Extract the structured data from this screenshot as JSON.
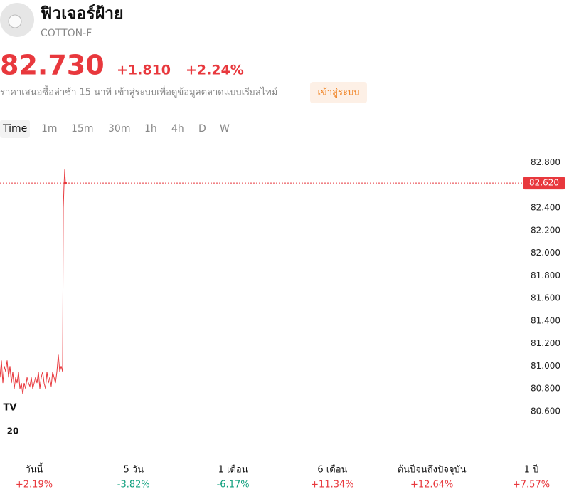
{
  "header": {
    "title": "ฟิวเจอร์ฝ้าย",
    "symbol": "COTTON-F"
  },
  "quote": {
    "price": "82.730",
    "change": "+1.810",
    "change_percent": "+2.24%",
    "delay_note": "ราคาเสนอซื้อล่าช้า 15 นาที เข้าสู่ระบบเพื่อดูข้อมูลตลาดแบบเรียลไทม์",
    "login_button": "เข้าสู่ระบบ"
  },
  "tabs": [
    "Time",
    "1m",
    "15m",
    "30m",
    "1h",
    "4h",
    "D",
    "W"
  ],
  "chart_data": {
    "type": "line",
    "x": [
      0,
      2,
      4,
      6,
      8,
      10,
      12,
      14,
      16,
      18,
      20,
      22,
      24,
      26,
      28,
      30,
      32,
      34,
      36,
      38,
      40,
      42,
      44,
      46,
      48,
      50,
      52,
      54,
      56,
      58,
      60,
      62,
      64,
      66,
      68,
      70,
      72,
      74,
      76,
      78,
      80,
      82,
      84,
      86,
      88,
      89,
      90,
      91,
      92
    ],
    "series": [
      {
        "color": "#e8383d",
        "values": [
          80.9,
          81.05,
          80.85,
          81.0,
          80.95,
          81.05,
          80.9,
          81.0,
          80.85,
          80.95,
          80.8,
          80.9,
          80.85,
          80.95,
          80.8,
          80.85,
          80.75,
          80.85,
          80.8,
          80.9,
          80.85,
          80.82,
          80.9,
          80.8,
          80.85,
          80.9,
          80.85,
          80.95,
          80.8,
          80.9,
          80.95,
          80.85,
          80.8,
          80.95,
          80.85,
          80.9,
          80.82,
          80.95,
          80.9,
          80.85,
          80.95,
          81.1,
          80.95,
          81.0,
          80.95,
          82.4,
          82.6,
          82.74,
          82.62
        ]
      }
    ],
    "xlim": [
      0,
      735
    ],
    "xticks": [
      {
        "value": 18,
        "label": "20"
      }
    ],
    "ylim": [
      80.46,
      82.98
    ],
    "yticks": [
      {
        "value": 80.6,
        "label": "80.600"
      },
      {
        "value": 80.8,
        "label": "80.800"
      },
      {
        "value": 81.0,
        "label": "81.000"
      },
      {
        "value": 81.2,
        "label": "81.200"
      },
      {
        "value": 81.4,
        "label": "81.400"
      },
      {
        "value": 81.6,
        "label": "81.600"
      },
      {
        "value": 81.8,
        "label": "81.800"
      },
      {
        "value": 82.0,
        "label": "82.000"
      },
      {
        "value": 82.2,
        "label": "82.200"
      },
      {
        "value": 82.4,
        "label": "82.400"
      },
      {
        "value": 82.8,
        "label": "82.800"
      }
    ],
    "price_line": {
      "value": 82.62,
      "label": "82.620"
    },
    "grid": false
  },
  "periods": [
    {
      "label": "วันนี้",
      "change": "+2.19%"
    },
    {
      "label": "5 วัน",
      "change": "-3.82%"
    },
    {
      "label": "1 เดือน",
      "change": "-6.17%"
    },
    {
      "label": "6 เดือน",
      "change": "+11.34%"
    },
    {
      "label": "ต้นปีจนถึงปัจจุบัน",
      "change": "+12.64%"
    },
    {
      "label": "1 ปี",
      "change": "+7.57%"
    }
  ]
}
